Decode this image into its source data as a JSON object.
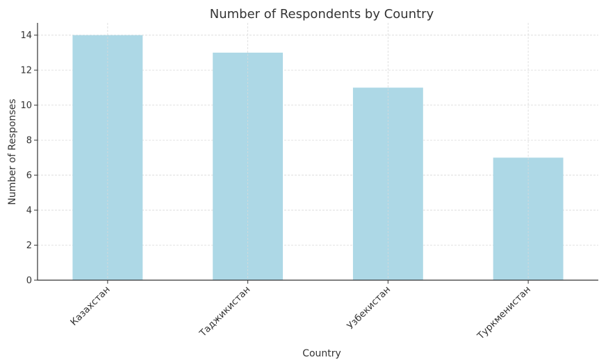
{
  "chart_data": {
    "type": "bar",
    "title": "Number of Respondents by Country",
    "xlabel": "Country",
    "ylabel": "Number of Responses",
    "categories": [
      "Казахстан",
      "Таджикистан",
      "Узбекистан",
      "Туркменистан"
    ],
    "values": [
      14,
      13,
      11,
      7
    ],
    "ylim": [
      0,
      14.7
    ],
    "yticks": [
      "0",
      "2",
      "4",
      "6",
      "8",
      "10",
      "12",
      "14"
    ],
    "grid": true,
    "legend": "none",
    "colors": {
      "bar": "#add8e6",
      "grid": "#d9d9d9",
      "axis": "#333333"
    }
  }
}
